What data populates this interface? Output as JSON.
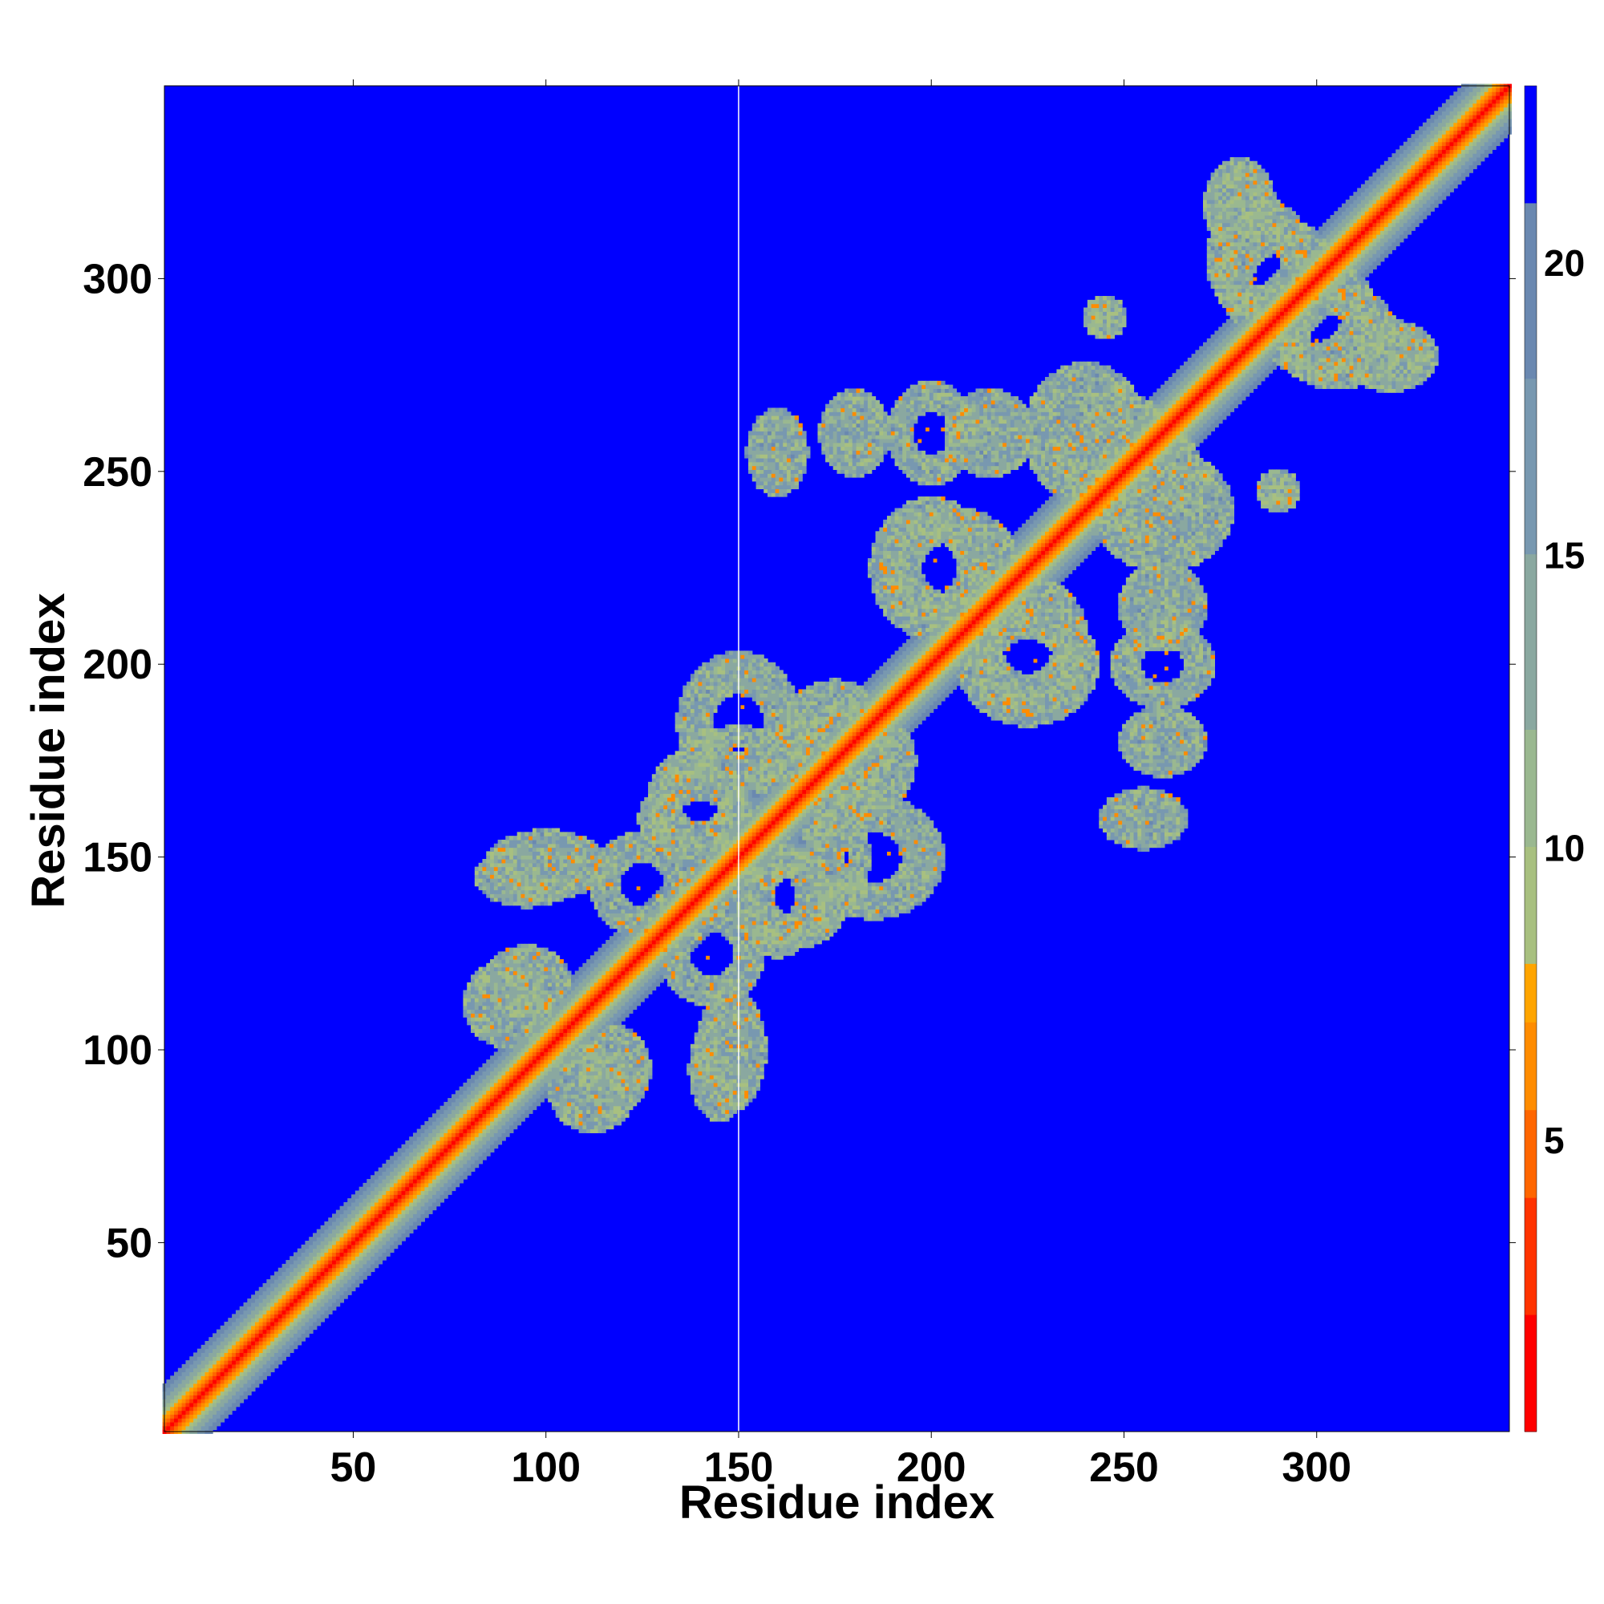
{
  "chart_data": {
    "type": "heatmap",
    "title": "",
    "xlabel": "Residue index",
    "ylabel": "Residue index",
    "xlim": [
      1,
      350
    ],
    "ylim": [
      1,
      350
    ],
    "x_ticks": [
      50,
      100,
      150,
      200,
      250,
      300
    ],
    "y_ticks": [
      50,
      100,
      150,
      200,
      250,
      300
    ],
    "matrix_symmetric": true,
    "colorbar": {
      "ticks": [
        5,
        10,
        15,
        20
      ],
      "range": [
        0,
        23
      ],
      "levels": [
        {
          "max": 2,
          "color": "#ff0000"
        },
        {
          "max": 4,
          "color": "#ff3300"
        },
        {
          "max": 5.5,
          "color": "#ff6600"
        },
        {
          "max": 7,
          "color": "#ff8c00"
        },
        {
          "max": 8,
          "color": "#ffa500"
        },
        {
          "max": 10,
          "color": "#a8c080"
        },
        {
          "max": 12,
          "color": "#9ab890"
        },
        {
          "max": 15,
          "color": "#8aa8a0"
        },
        {
          "max": 18,
          "color": "#7898b0"
        },
        {
          "max": 21,
          "color": "#6a88b0"
        },
        {
          "max": 23,
          "color": "#0000ff"
        }
      ]
    },
    "background_color": "#0000ff",
    "diagonal_width": 4,
    "contact_regions": [
      {
        "i": 112,
        "j": 90,
        "rx": 10,
        "ry": 10
      },
      {
        "i": 95,
        "j": 118,
        "rx": 10,
        "ry": 8
      },
      {
        "i": 145,
        "j": 95,
        "rx": 7,
        "ry": 12
      },
      {
        "i": 143,
        "j": 125,
        "rx": 12,
        "ry": 12
      },
      {
        "i": 100,
        "j": 148,
        "rx": 14,
        "ry": 8
      },
      {
        "i": 140,
        "j": 160,
        "rx": 14,
        "ry": 10
      },
      {
        "i": 165,
        "j": 140,
        "rx": 12,
        "ry": 12
      },
      {
        "i": 175,
        "j": 180,
        "rx": 14,
        "ry": 14
      },
      {
        "i": 185,
        "j": 150,
        "rx": 16,
        "ry": 14
      },
      {
        "i": 205,
        "j": 225,
        "rx": 16,
        "ry": 14
      },
      {
        "i": 225,
        "j": 200,
        "rx": 16,
        "ry": 14
      },
      {
        "i": 248,
        "j": 255,
        "rx": 14,
        "ry": 14
      },
      {
        "i": 260,
        "j": 240,
        "rx": 16,
        "ry": 14
      },
      {
        "i": 215,
        "j": 260,
        "rx": 10,
        "ry": 10
      },
      {
        "i": 160,
        "j": 255,
        "rx": 7,
        "ry": 10
      },
      {
        "i": 260,
        "j": 200,
        "rx": 12,
        "ry": 10
      },
      {
        "i": 290,
        "j": 300,
        "rx": 14,
        "ry": 14
      },
      {
        "i": 305,
        "j": 285,
        "rx": 14,
        "ry": 12
      },
      {
        "i": 290,
        "j": 245,
        "rx": 5,
        "ry": 5
      },
      {
        "i": 245,
        "j": 290,
        "rx": 5,
        "ry": 5
      },
      {
        "i": 320,
        "j": 280,
        "rx": 10,
        "ry": 8
      },
      {
        "i": 280,
        "j": 318,
        "rx": 8,
        "ry": 10
      },
      {
        "i": 260,
        "j": 180,
        "rx": 10,
        "ry": 8
      },
      {
        "i": 150,
        "j": 175,
        "rx": 14,
        "ry": 8
      }
    ],
    "gap_column": 150
  }
}
